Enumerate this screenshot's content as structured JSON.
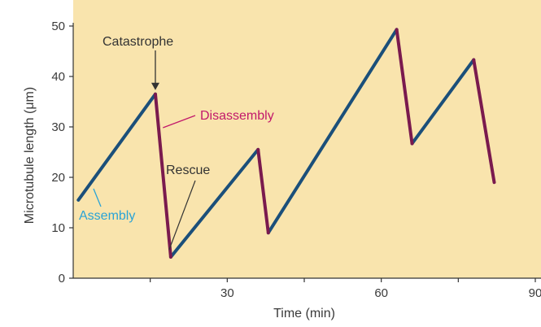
{
  "chart_data": {
    "type": "line",
    "title": "",
    "xlabel": "Time (min)",
    "ylabel": "Microtubule length (μm)",
    "xlim": [
      0,
      90
    ],
    "ylim": [
      0,
      50
    ],
    "x_ticks": [
      0,
      15,
      30,
      45,
      60,
      75,
      90
    ],
    "x_tick_labels": [
      "30",
      "60",
      "90"
    ],
    "x_labeled_ticks": [
      30,
      60,
      90
    ],
    "y_ticks": [
      0,
      10,
      20,
      30,
      40,
      50
    ],
    "y_tick_labels": [
      "0",
      "10",
      "20",
      "30",
      "40",
      "50"
    ],
    "grid": false,
    "background_color": "#f9e4ad",
    "series": [
      {
        "name": "Assembly",
        "color": "#1b4f7a",
        "segments": [
          [
            [
              1,
              15.5
            ],
            [
              16,
              36.5
            ]
          ],
          [
            [
              19,
              4.2
            ],
            [
              36,
              25.5
            ]
          ],
          [
            [
              38,
              9
            ],
            [
              63,
              49.3
            ]
          ],
          [
            [
              66,
              26.7
            ],
            [
              78,
              43.3
            ]
          ]
        ]
      },
      {
        "name": "Disassembly",
        "color": "#7a1a4e",
        "segments": [
          [
            [
              16,
              36.5
            ],
            [
              19,
              4.2
            ]
          ],
          [
            [
              36,
              25.5
            ],
            [
              38,
              9
            ]
          ],
          [
            [
              63,
              49.3
            ],
            [
              66,
              26.7
            ]
          ],
          [
            [
              78,
              43.3
            ],
            [
              82,
              19
            ]
          ]
        ]
      }
    ],
    "annotations": [
      {
        "text": "Catastrophe",
        "color": "#333333",
        "x": 16,
        "y": 36.5
      },
      {
        "text": "Disassembly",
        "color": "#c2186b",
        "x": 17,
        "y": 30
      },
      {
        "text": "Rescue",
        "color": "#333333",
        "x": 19,
        "y": 5
      },
      {
        "text": "Assembly",
        "color": "#2aa3d6",
        "x": 2,
        "y": 17
      }
    ]
  }
}
